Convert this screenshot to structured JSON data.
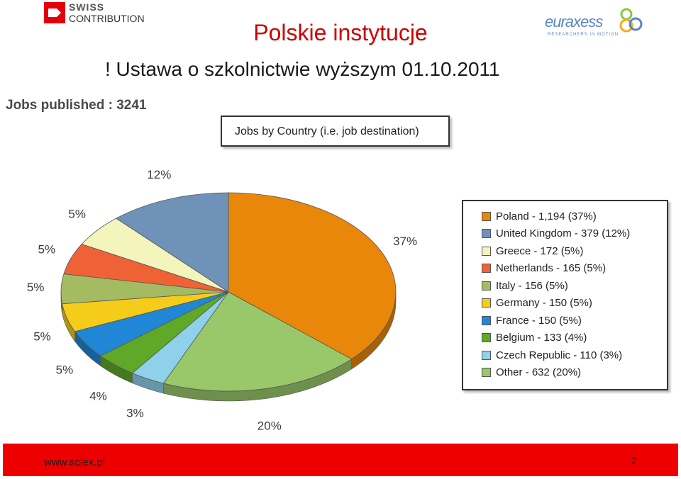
{
  "branding": {
    "swiss_word": "SWISS",
    "swiss_sub": "CONTRIBUTION",
    "euraxess_word": "euraxess",
    "euraxess_tag": "RESEARCHERS IN MOTION"
  },
  "slide": {
    "title": "Polskie instytucje",
    "subtitle": "! Ustawa o szkolnictwie wyższym 01.10.2011",
    "jobs_published": "Jobs published : 3241"
  },
  "chart_data": {
    "type": "pie",
    "title": "Jobs by Country (i.e. job destination)",
    "slices": [
      {
        "legend": "Poland - 1,194 (37%)",
        "value": 1194,
        "percent": 37,
        "label": "37%",
        "color": "#e8870a"
      },
      {
        "legend": "Other - 632 (20%)",
        "value": 632,
        "percent": 20,
        "label": "20%",
        "color": "#99c86a"
      },
      {
        "legend": "Czech Republic - 110 (3%)",
        "value": 110,
        "percent": 3,
        "label": "3%",
        "color": "#8fd1ea"
      },
      {
        "legend": "Belgium - 133 (4%)",
        "value": 133,
        "percent": 4,
        "label": "4%",
        "color": "#5fa828"
      },
      {
        "legend": "France - 150 (5%)",
        "value": 150,
        "percent": 5,
        "label": "5%",
        "color": "#1f87d6"
      },
      {
        "legend": "Germany - 150 (5%)",
        "value": 150,
        "percent": 5,
        "label": "5%",
        "color": "#f6cc1a"
      },
      {
        "legend": "Italy - 156 (5%)",
        "value": 156,
        "percent": 5,
        "label": "5%",
        "color": "#a5bb62"
      },
      {
        "legend": "Netherlands - 165 (5%)",
        "value": 165,
        "percent": 5,
        "label": "5%",
        "color": "#ef6236"
      },
      {
        "legend": "Greece - 172 (5%)",
        "value": 172,
        "percent": 5,
        "label": "5%",
        "color": "#f3f5bd"
      },
      {
        "legend": "United Kingdom - 379 (12%)",
        "value": 379,
        "percent": 12,
        "label": "12%",
        "color": "#6f92b8"
      }
    ],
    "legend_order": [
      "Poland - 1,194 (37%)",
      "United Kingdom - 379 (12%)",
      "Greece - 172 (5%)",
      "Netherlands - 165 (5%)",
      "Italy - 156 (5%)",
      "Germany - 150 (5%)",
      "France - 150 (5%)",
      "Belgium - 133 (4%)",
      "Czech Republic - 110 (3%)",
      "Other - 632 (20%)"
    ],
    "legend_placement": "right"
  },
  "footer": {
    "url": "www.sciex.pl",
    "page_number": "2"
  }
}
